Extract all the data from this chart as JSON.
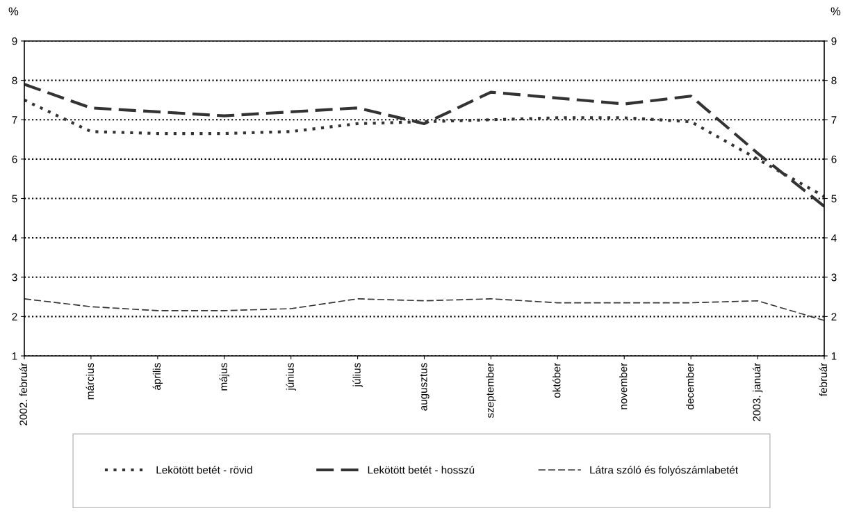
{
  "chart_data": {
    "type": "line",
    "ylabel": "%",
    "y2label": "%",
    "categories": [
      "2002. február",
      "március",
      "április",
      "május",
      "június",
      "július",
      "augusztus",
      "szeptember",
      "október",
      "november",
      "december",
      "2003. január",
      "február"
    ],
    "series": [
      {
        "name": "Lekötött betét - rövid",
        "color": "#333333",
        "line_style": "dotted",
        "values": [
          7.5,
          6.7,
          6.65,
          6.65,
          6.7,
          6.9,
          6.95,
          7.0,
          7.05,
          7.05,
          6.95,
          6.0,
          5.05
        ]
      },
      {
        "name": "Lekötött betét - hosszú",
        "color": "#333333",
        "line_style": "dashed",
        "values": [
          7.9,
          7.3,
          7.2,
          7.1,
          7.2,
          7.3,
          6.9,
          7.7,
          7.55,
          7.4,
          7.6,
          6.15,
          4.8
        ]
      },
      {
        "name": "Látra szóló és folyószámlabetét",
        "color": "#333333",
        "line_style": "dashed",
        "values": [
          2.45,
          2.25,
          2.15,
          2.15,
          2.2,
          2.45,
          2.4,
          2.45,
          2.35,
          2.35,
          2.35,
          2.4,
          1.9
        ]
      }
    ],
    "ylim": [
      1,
      9
    ],
    "yticks": [
      1,
      2,
      3,
      4,
      5,
      6,
      7,
      8,
      9
    ],
    "y2lim": [
      1,
      9
    ],
    "y2ticks": [
      1,
      2,
      3,
      4,
      5,
      6,
      7,
      8,
      9
    ],
    "grid": "y",
    "legend": "bottom",
    "marker": "none"
  }
}
